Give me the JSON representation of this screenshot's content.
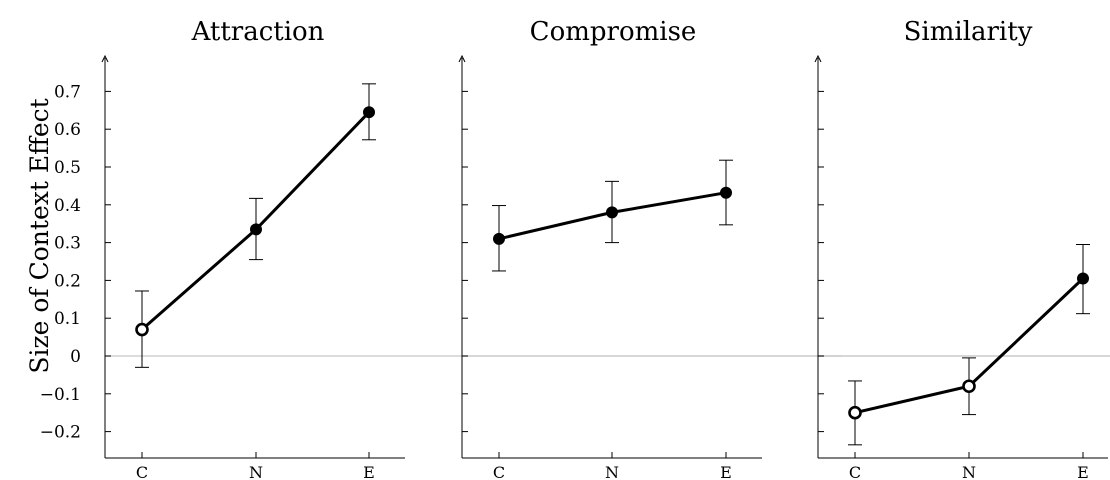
{
  "chart_data": [
    {
      "type": "line",
      "title": "Attraction",
      "ylabel": "Size of Context Effect",
      "categories": [
        "C",
        "N",
        "E"
      ],
      "values": [
        0.07,
        0.335,
        0.645
      ],
      "error_low": [
        -0.03,
        0.255,
        0.572
      ],
      "error_high": [
        0.172,
        0.417,
        0.72
      ],
      "marker_fill": [
        "open",
        "filled",
        "filled"
      ],
      "yticks": [
        "−0.2",
        "−0.1",
        "0",
        "0.1",
        "0.2",
        "0.3",
        "0.4",
        "0.5",
        "0.6",
        "0.7"
      ],
      "ylim": [
        -0.25,
        0.75
      ],
      "zero_line": true
    },
    {
      "type": "line",
      "title": "Compromise",
      "categories": [
        "C",
        "N",
        "E"
      ],
      "values": [
        0.31,
        0.38,
        0.432
      ],
      "error_low": [
        0.225,
        0.3,
        0.347
      ],
      "error_high": [
        0.398,
        0.462,
        0.518
      ],
      "marker_fill": [
        "filled",
        "filled",
        "filled"
      ],
      "ylim": [
        -0.25,
        0.75
      ],
      "zero_line": true
    },
    {
      "type": "line",
      "title": "Similarity",
      "categories": [
        "C",
        "N",
        "E"
      ],
      "values": [
        -0.15,
        -0.08,
        0.205
      ],
      "error_low": [
        -0.235,
        -0.155,
        0.112
      ],
      "error_high": [
        -0.066,
        -0.005,
        0.295
      ],
      "marker_fill": [
        "open",
        "open",
        "filled"
      ],
      "ylim": [
        -0.25,
        0.75
      ],
      "zero_line": true
    }
  ],
  "colors": {
    "line": "#000000",
    "marker_open_fill": "#ffffff",
    "zero_line": "#c8c8c8"
  }
}
